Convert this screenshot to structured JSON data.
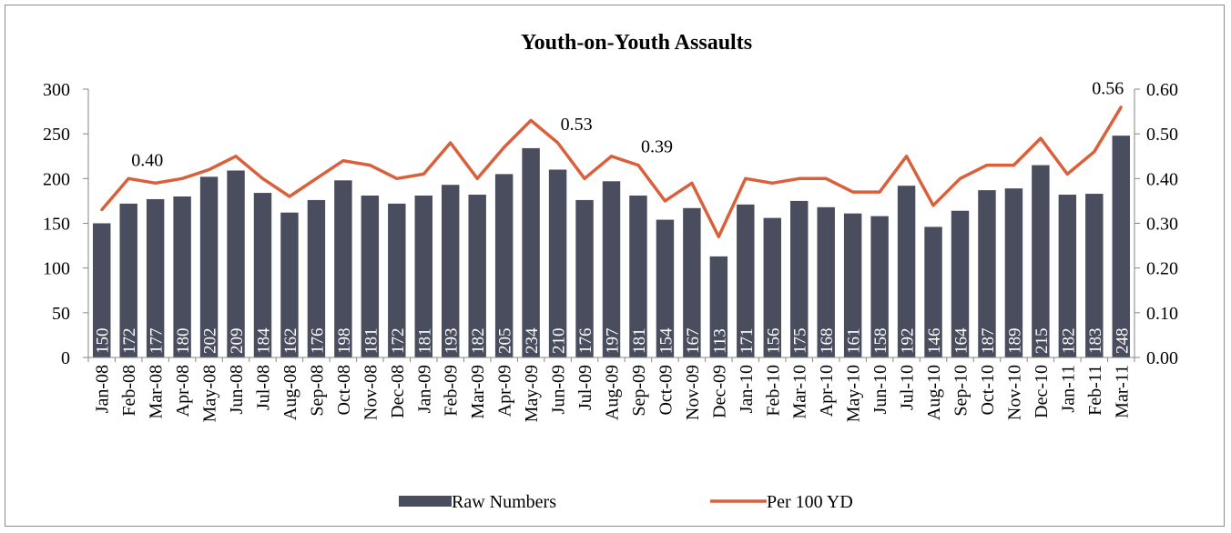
{
  "chart_data": {
    "type": "bar",
    "title": "Youth-on-Youth Assaults",
    "categories": [
      "Jan-08",
      "Feb-08",
      "Mar-08",
      "Apr-08",
      "May-08",
      "Jun-08",
      "Jul-08",
      "Aug-08",
      "Sep-08",
      "Oct-08",
      "Nov-08",
      "Dec-08",
      "Jan-09",
      "Feb-09",
      "Mar-09",
      "Apr-09",
      "May-09",
      "Jun-09",
      "Jul-09",
      "Aug-09",
      "Sep-09",
      "Oct-09",
      "Nov-09",
      "Dec-09",
      "Jan-10",
      "Feb-10",
      "Mar-10",
      "Apr-10",
      "May-10",
      "Jun-10",
      "Jul-10",
      "Aug-10",
      "Sep-10",
      "Oct-10",
      "Nov-10",
      "Dec-10",
      "Jan-11",
      "Feb-11",
      "Mar-11"
    ],
    "series": [
      {
        "name": "Raw Numbers",
        "type": "bar",
        "axis": "left",
        "color": "#4a4d5e",
        "values": [
          150,
          172,
          177,
          180,
          202,
          209,
          184,
          162,
          176,
          198,
          181,
          172,
          181,
          193,
          182,
          205,
          234,
          210,
          176,
          197,
          181,
          154,
          167,
          113,
          171,
          156,
          175,
          168,
          161,
          158,
          192,
          146,
          164,
          187,
          189,
          215,
          182,
          183,
          248
        ]
      },
      {
        "name": "Per 100 YD",
        "type": "line",
        "axis": "right",
        "color": "#d9603b",
        "values": [
          0.33,
          0.4,
          0.39,
          0.4,
          0.42,
          0.45,
          0.4,
          0.36,
          0.4,
          0.44,
          0.43,
          0.4,
          0.41,
          0.48,
          0.4,
          0.47,
          0.53,
          0.48,
          0.4,
          0.45,
          0.43,
          0.35,
          0.39,
          0.27,
          0.4,
          0.39,
          0.4,
          0.4,
          0.37,
          0.37,
          0.45,
          0.34,
          0.4,
          0.43,
          0.43,
          0.49,
          0.41,
          0.46,
          0.56
        ]
      }
    ],
    "y_left": {
      "min": 0,
      "max": 300,
      "ticks": [
        "0",
        "50",
        "100",
        "150",
        "200",
        "250",
        "300"
      ]
    },
    "y_right": {
      "min": 0,
      "max": 0.6,
      "ticks": [
        "0.00",
        "0.10",
        "0.20",
        "0.30",
        "0.40",
        "0.50",
        "0.60"
      ]
    },
    "annotations": [
      {
        "index": 1,
        "text": "0.40"
      },
      {
        "index": 17,
        "text": "0.53"
      },
      {
        "index": 20,
        "text": "0.39"
      },
      {
        "index": 38,
        "text": "0.56"
      }
    ],
    "bar_data_labels": true,
    "grid": false,
    "legend_position": "bottom"
  }
}
